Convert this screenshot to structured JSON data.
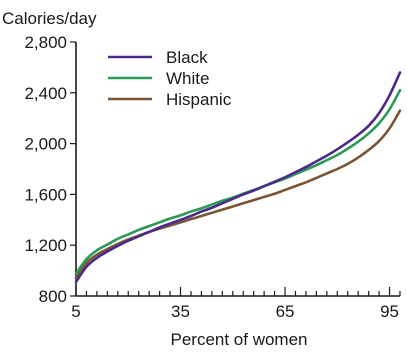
{
  "chart_data": {
    "type": "line",
    "title": "",
    "ylabel": "Calories/day",
    "xlabel": "Percent of women",
    "xlim": [
      5,
      98
    ],
    "ylim": [
      800,
      2800
    ],
    "x_ticks": [
      5,
      35,
      65,
      95
    ],
    "x_tick_labels": [
      "5",
      "35",
      "65",
      "95"
    ],
    "x_minor_step": 3,
    "y_ticks": [
      800,
      1200,
      1600,
      2000,
      2400,
      2800
    ],
    "y_tick_labels": [
      "800",
      "1,200",
      "1,600",
      "2,000",
      "2,400",
      "2,800"
    ],
    "grid": false,
    "legend_position": "top-left",
    "x": [
      5,
      8,
      11,
      14,
      17,
      20,
      23,
      26,
      29,
      32,
      35,
      38,
      41,
      44,
      47,
      50,
      53,
      56,
      59,
      62,
      65,
      68,
      71,
      74,
      77,
      80,
      83,
      86,
      89,
      92,
      95,
      98
    ],
    "series": [
      {
        "name": "Black",
        "color": "#4b2a8c",
        "values": [
          910,
          1030,
          1100,
          1150,
          1195,
          1235,
          1270,
          1305,
          1340,
          1370,
          1400,
          1430,
          1465,
          1495,
          1530,
          1565,
          1600,
          1630,
          1665,
          1700,
          1735,
          1775,
          1815,
          1860,
          1905,
          1955,
          2010,
          2070,
          2140,
          2240,
          2380,
          2560
        ]
      },
      {
        "name": "White",
        "color": "#2a9a55",
        "values": [
          975,
          1090,
          1160,
          1205,
          1250,
          1285,
          1320,
          1350,
          1380,
          1410,
          1435,
          1465,
          1490,
          1520,
          1550,
          1575,
          1605,
          1635,
          1665,
          1695,
          1725,
          1760,
          1795,
          1830,
          1870,
          1910,
          1960,
          2015,
          2080,
          2160,
          2270,
          2420
        ]
      },
      {
        "name": "Hispanic",
        "color": "#7a5535",
        "values": [
          940,
          1060,
          1125,
          1170,
          1210,
          1245,
          1275,
          1305,
          1330,
          1355,
          1380,
          1405,
          1430,
          1455,
          1480,
          1505,
          1530,
          1555,
          1580,
          1605,
          1635,
          1665,
          1695,
          1730,
          1765,
          1800,
          1840,
          1890,
          1950,
          2020,
          2120,
          2260
        ]
      }
    ]
  }
}
